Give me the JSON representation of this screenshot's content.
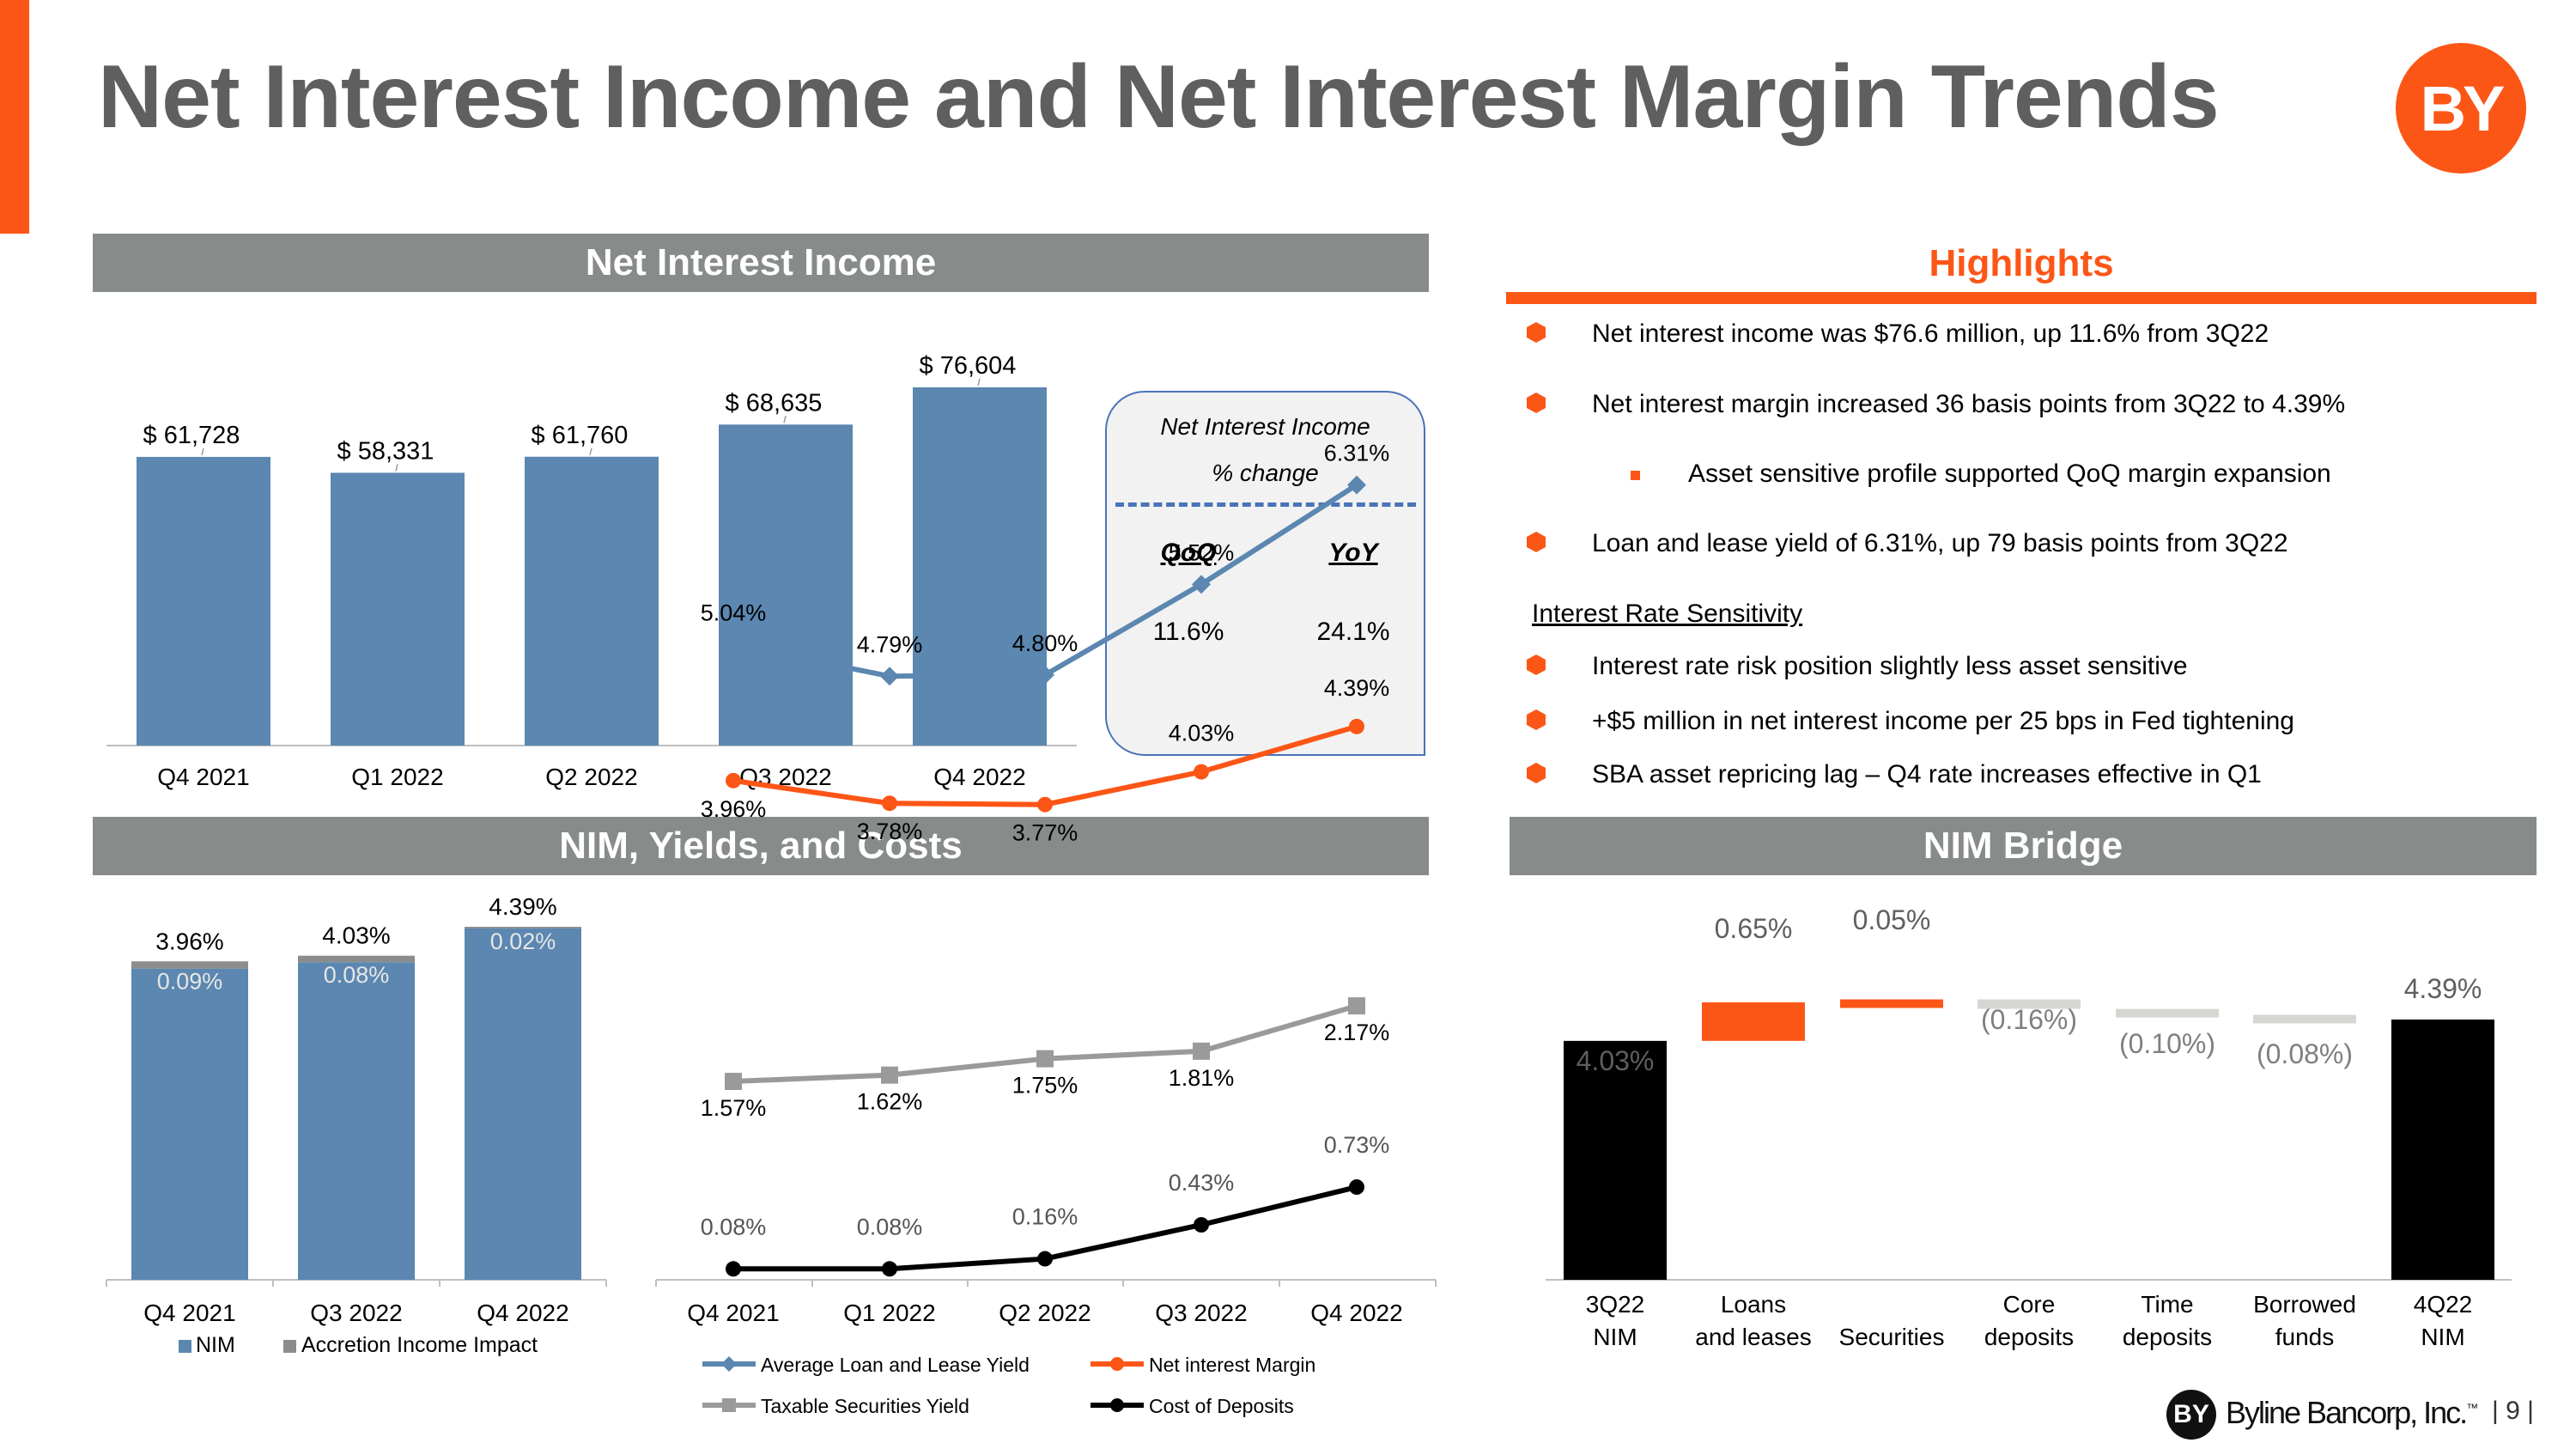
{
  "page": {
    "title": "Net Interest Income and Net Interest Margin Trends",
    "logo_text": "BY",
    "footer_logo_text": "BY",
    "footer_company": "Byline Bancorp, Inc.",
    "footer_tm": "™",
    "page_number": "9",
    "colors": {
      "accent": "#fc5617",
      "header_gray": "#878b89",
      "bar_blue": "#5b87b0",
      "title_gray": "#5f5f5f"
    }
  },
  "sections": {
    "nii": "Net Interest Income",
    "highlights": "Highlights",
    "nim_yields": "NIM, Yields, and Costs",
    "nim_bridge": "NIM Bridge"
  },
  "nii_box": {
    "title_line1": "Net Interest Income",
    "title_line2": "% change",
    "qoq_label": "QoQ",
    "yoy_label": "YoY",
    "qoq_value": "11.6%",
    "yoy_value": "24.1%"
  },
  "highlights": {
    "items": [
      "Net interest income was $76.6 million, up 11.6% from 3Q22",
      "Net interest margin increased 36 basis points from 3Q22 to 4.39%",
      "Asset sensitive profile supported QoQ margin expansion",
      "Loan and lease yield of 6.31%, up 79 basis points from 3Q22"
    ],
    "sensitivity_heading": "Interest Rate Sensitivity",
    "sensitivity_items": [
      "Interest rate risk position slightly less asset sensitive",
      "+$5 million in net interest income per 25 bps in Fed tightening",
      "SBA asset repricing lag – Q4 rate increases effective in Q1"
    ]
  },
  "chart_data": [
    {
      "id": "nii",
      "type": "bar",
      "title": "Net Interest Income",
      "categories": [
        "Q4 2021",
        "Q1 2022",
        "Q2 2022",
        "Q3 2022",
        "Q4 2022"
      ],
      "values": [
        61728,
        58331,
        61760,
        68635,
        76604
      ],
      "labels": [
        "$ 61,728",
        "$ 58,331",
        "$ 61,760",
        "$ 68,635",
        "$ 76,604"
      ],
      "ylim": [
        0,
        90000
      ]
    },
    {
      "id": "nim_stack",
      "type": "bar",
      "stacked": true,
      "categories": [
        "Q4 2021",
        "Q3 2022",
        "Q4 2022"
      ],
      "series": [
        {
          "name": "NIM",
          "values": [
            3.87,
            3.95,
            4.37
          ]
        },
        {
          "name": "Accretion Income Impact",
          "values": [
            0.09,
            0.08,
            0.02
          ],
          "labels": [
            "0.09%",
            "0.08%",
            "0.02%"
          ]
        }
      ],
      "totals": [
        3.96,
        4.03,
        4.39
      ],
      "total_labels": [
        "3.96%",
        "4.03%",
        "4.39%"
      ],
      "ylim": [
        0,
        5
      ]
    },
    {
      "id": "yields",
      "type": "line",
      "categories": [
        "Q4 2021",
        "Q1 2022",
        "Q2 2022",
        "Q3 2022",
        "Q4 2022"
      ],
      "series": [
        {
          "name": "Average Loan and Lease Yield",
          "values": [
            5.04,
            4.79,
            4.8,
            5.52,
            6.31
          ],
          "labels": [
            "5.04%",
            "4.79%",
            "4.80%",
            "5.52%",
            "6.31%"
          ],
          "color": "#5b87b0",
          "marker": "diamond"
        },
        {
          "name": "Net interest Margin",
          "values": [
            3.96,
            3.78,
            3.77,
            4.03,
            4.39
          ],
          "labels": [
            "3.96%",
            "3.78%",
            "3.77%",
            "4.03%",
            "4.39%"
          ],
          "color": "#fc5617",
          "marker": "circle"
        },
        {
          "name": "Taxable Securities Yield",
          "values": [
            1.57,
            1.62,
            1.75,
            1.81,
            2.17
          ],
          "labels": [
            "1.57%",
            "1.62%",
            "1.75%",
            "1.81%",
            "2.17%"
          ],
          "color": "#9a9a9a",
          "marker": "square"
        },
        {
          "name": "Cost of Deposits",
          "values": [
            0.08,
            0.08,
            0.16,
            0.43,
            0.73
          ],
          "labels": [
            "0.08%",
            "0.08%",
            "0.16%",
            "0.43%",
            "0.73%"
          ],
          "color": "#000000",
          "marker": "circle"
        }
      ]
    },
    {
      "id": "bridge",
      "type": "waterfall",
      "title": "NIM Bridge",
      "categories": [
        "3Q22\nNIM",
        "Loans\nand leases",
        "Securities",
        "Core\ndeposits",
        "Time\ndeposits",
        "Borrowed\nfunds",
        "4Q22\nNIM"
      ],
      "values": [
        4.03,
        0.65,
        0.05,
        -0.16,
        -0.1,
        -0.08,
        4.39
      ],
      "labels": [
        "4.03%",
        "0.65%",
        "0.05%",
        "(0.16%)",
        "(0.10%)",
        "(0.08%)",
        "4.39%"
      ],
      "kinds": [
        "total",
        "delta",
        "delta",
        "delta",
        "delta",
        "delta",
        "total"
      ]
    }
  ]
}
